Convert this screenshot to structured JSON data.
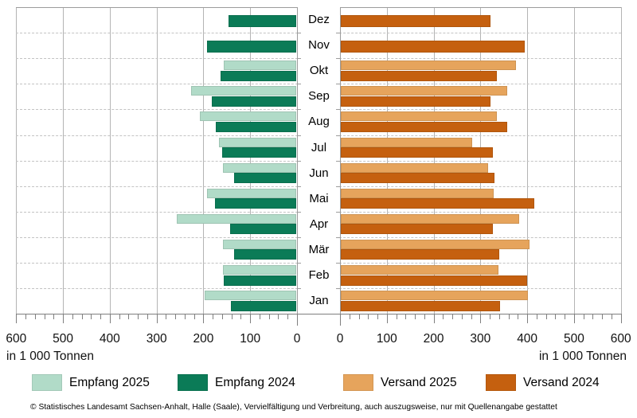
{
  "footer": "© Statistisches Landesamt Sachsen-Anhalt, Halle (Saale), Vervielfältigung und Verbreitung, auch auszugsweise, nur mit Quellenangabe gestattet",
  "chart_data": {
    "type": "bar",
    "orientation": "horizontal-diverging",
    "unit": "in 1 000 Tonnen",
    "categories": [
      "Jan",
      "Feb",
      "Mär",
      "Apr",
      "Mai",
      "Jun",
      "Jul",
      "Aug",
      "Sep",
      "Okt",
      "Nov",
      "Dez"
    ],
    "display_order_top_to_bottom": [
      "Dez",
      "Nov",
      "Okt",
      "Sep",
      "Aug",
      "Jul",
      "Jun",
      "Mai",
      "Apr",
      "Mär",
      "Feb",
      "Jan"
    ],
    "axis_left": {
      "unit_label": "in 1 000 Tonnen",
      "ticks": [
        600,
        500,
        400,
        300,
        200,
        100,
        0
      ],
      "max": 600,
      "minor_step": 20
    },
    "axis_right": {
      "unit_label": "in 1 000 Tonnen",
      "ticks": [
        0,
        100,
        200,
        300,
        400,
        500,
        600
      ],
      "max": 600,
      "minor_step": 20
    },
    "grid": {
      "vertical_solid_every": 100,
      "horizontal_dashed_between_months": true
    },
    "legend_position": "bottom",
    "series": [
      {
        "name": "Empfang 2025",
        "side": "left",
        "color": "#b1dbc8",
        "values": [
          195,
          156,
          157,
          255,
          191,
          157,
          165,
          206,
          224,
          154,
          null,
          null
        ]
      },
      {
        "name": "Empfang 2024",
        "side": "left",
        "color": "#0b7b57",
        "values": [
          140,
          155,
          133,
          141,
          174,
          133,
          158,
          171,
          180,
          161,
          191,
          145
        ]
      },
      {
        "name": "Versand 2025",
        "side": "right",
        "color": "#e6a45c",
        "values": [
          400,
          336,
          403,
          381,
          327,
          315,
          281,
          334,
          355,
          374,
          null,
          null
        ]
      },
      {
        "name": "Versand 2024",
        "side": "right",
        "color": "#c5600f",
        "values": [
          341,
          398,
          339,
          325,
          413,
          329,
          325,
          355,
          320,
          333,
          393,
          320
        ]
      }
    ]
  }
}
